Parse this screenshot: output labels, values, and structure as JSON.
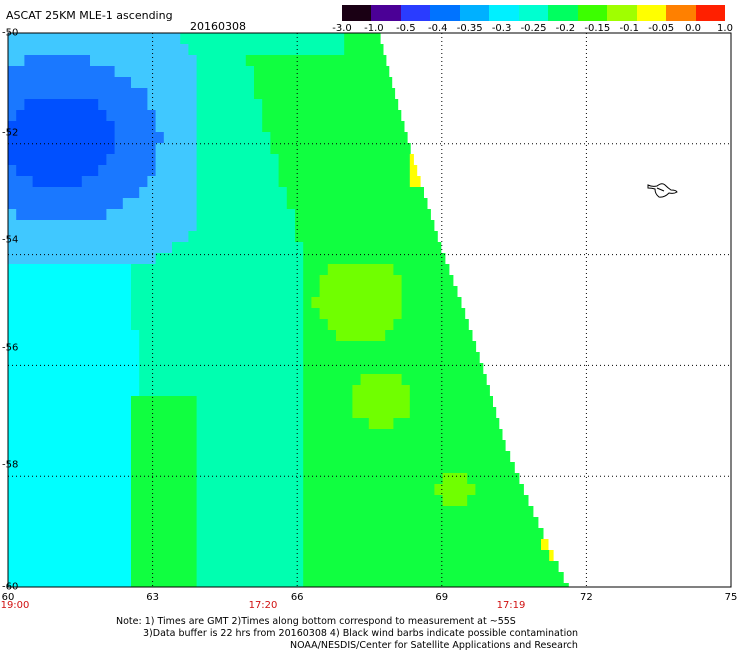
{
  "header": {
    "title": "ASCAT 25KM MLE-1 ascending",
    "date": "20160308"
  },
  "colorbar": {
    "labels": [
      "-3.0",
      "-1.0",
      "-0.5",
      "-0.4",
      "-0.35",
      "-0.3",
      "-0.25",
      "-0.2",
      "-0.15",
      "-0.1",
      "-0.05",
      "0.0",
      "1.0"
    ],
    "colors": [
      "#1a0014",
      "#4b0096",
      "#2a3cff",
      "#0073ff",
      "#00b0ff",
      "#00f0ff",
      "#00ffd0",
      "#00ff60",
      "#3cff00",
      "#a0ff00",
      "#ffff00",
      "#ff8000",
      "#ff2000"
    ]
  },
  "map": {
    "lat_labels": [
      "-50",
      "-52",
      "-54",
      "-56",
      "-58",
      "-60"
    ],
    "lon_labels": [
      "60",
      "63",
      "66",
      "69",
      "72",
      "75"
    ],
    "time_labels": [
      "19:00",
      "17:20",
      "17:19"
    ],
    "palette": {
      "deep_blue": "#0050ff",
      "blue": "#1a78ff",
      "light_blue": "#40c8ff",
      "cyan": "#00ffff",
      "aqua_green": "#00ffb0",
      "green": "#10ff40",
      "lime": "#70ff00",
      "yellow": "#ffff00"
    }
  },
  "footer": {
    "note_line1": "Note: 1) Times are GMT 2)Times along bottom correspond to measurement at ~55S",
    "note_line2": "3)Data buffer is 22 hrs from 20160308 4) Black wind barbs indicate possible contamination",
    "credit": "NOAA/NESDIS/Center for Satellite Applications and Research"
  }
}
